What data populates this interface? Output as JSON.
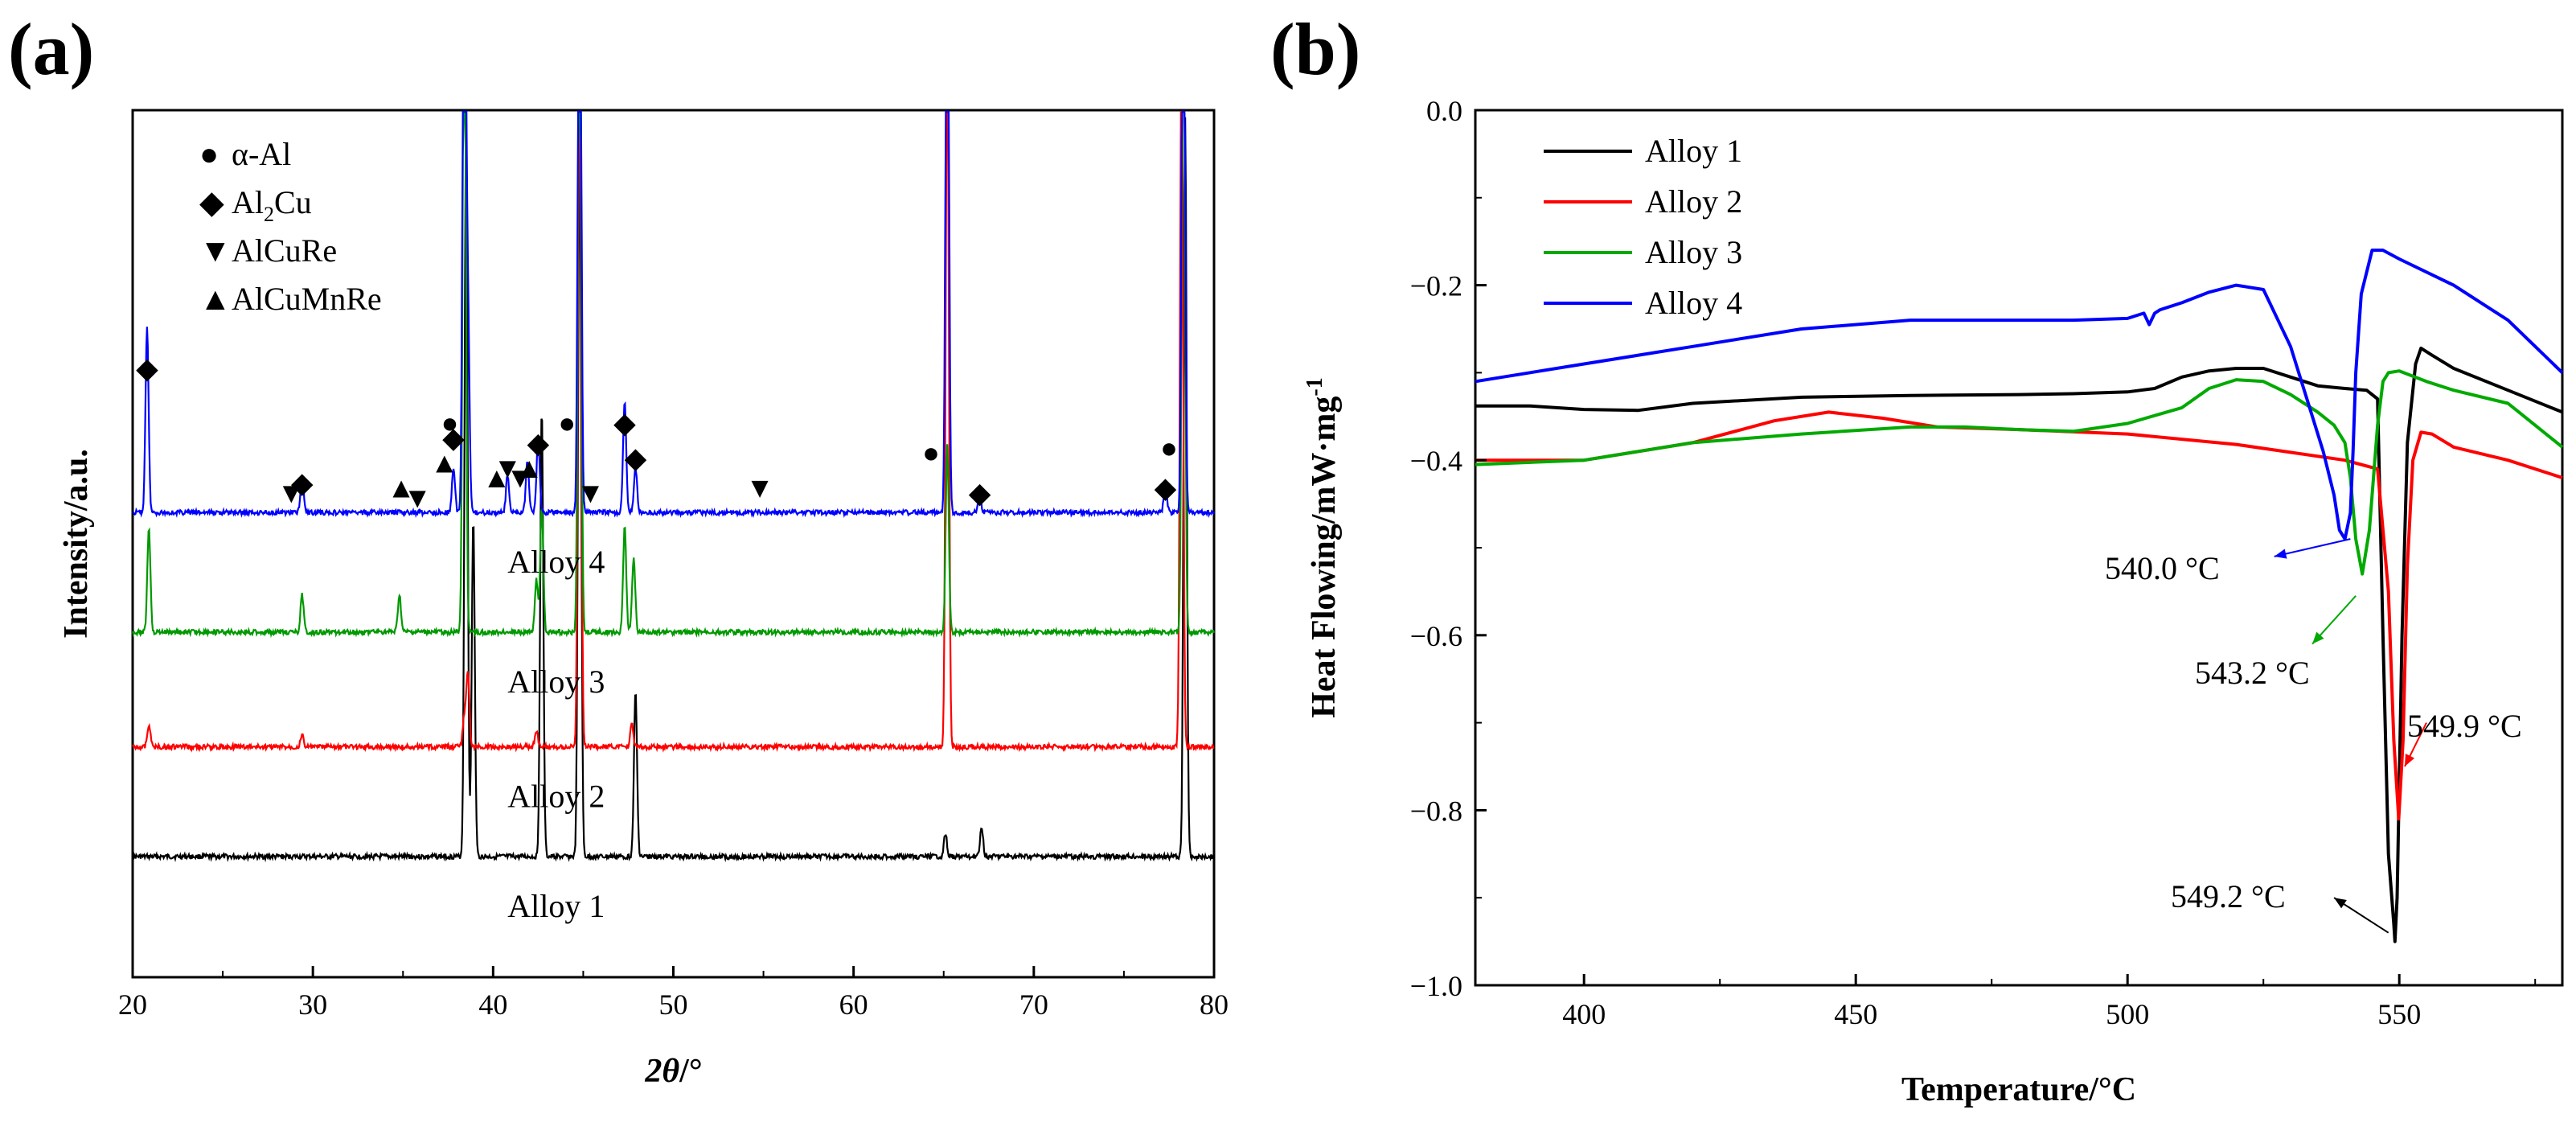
{
  "chart_data": [
    {
      "panel_label": "(a)",
      "type": "line",
      "title": "",
      "xlabel_italic": "2θ",
      "xlabel_unit": "/°",
      "ylabel": "Intensity/a.u.",
      "xlim": [
        20,
        80
      ],
      "xticks": [
        20,
        30,
        40,
        50,
        60,
        70,
        80
      ],
      "xtick_labels": [
        "20",
        "30",
        "40",
        "50",
        "60",
        "70",
        "80"
      ],
      "series": [
        {
          "name": "Alloy 1",
          "color": "#000000",
          "baseline": 0.0,
          "peaks": [
            [
              38.5,
              0.98
            ],
            [
              38.9,
              0.45
            ],
            [
              42.7,
              0.6
            ],
            [
              44.8,
              0.98
            ],
            [
              47.9,
              0.22
            ],
            [
              65.1,
              0.03
            ],
            [
              67.1,
              0.04
            ],
            [
              78.4,
              0.99
            ]
          ]
        },
        {
          "name": "Alloy 2",
          "color": "#ff0000",
          "baseline": 0.22,
          "peaks": [
            [
              20.9,
              0.03
            ],
            [
              29.4,
              0.015
            ],
            [
              38.4,
              0.04
            ],
            [
              38.6,
              0.1
            ],
            [
              42.4,
              0.02
            ],
            [
              44.8,
              0.99
            ],
            [
              47.7,
              0.03
            ],
            [
              65.2,
              0.99
            ],
            [
              78.2,
              0.99
            ]
          ]
        },
        {
          "name": "Alloy 3",
          "color": "#009900",
          "baseline": 0.45,
          "peaks": [
            [
              20.9,
              0.14
            ],
            [
              29.4,
              0.05
            ],
            [
              34.8,
              0.05
            ],
            [
              38.4,
              0.99
            ],
            [
              42.4,
              0.07
            ],
            [
              42.7,
              0.17
            ],
            [
              44.8,
              0.99
            ],
            [
              47.3,
              0.14
            ],
            [
              47.8,
              0.1
            ],
            [
              65.2,
              0.25
            ],
            [
              78.3,
              0.99
            ]
          ]
        },
        {
          "name": "Alloy 4",
          "color": "#0000ff",
          "baseline": 0.69,
          "peaks": [
            [
              20.8,
              0.25
            ],
            [
              29.4,
              0.05
            ],
            [
              37.8,
              0.06
            ],
            [
              38.4,
              0.99
            ],
            [
              38.6,
              0.28
            ],
            [
              40.8,
              0.05
            ],
            [
              41.9,
              0.07
            ],
            [
              42.5,
              0.1
            ],
            [
              44.8,
              0.99
            ],
            [
              47.3,
              0.15
            ],
            [
              47.9,
              0.06
            ],
            [
              65.2,
              0.99
            ],
            [
              67.0,
              0.02
            ],
            [
              77.3,
              0.04
            ],
            [
              78.3,
              0.99
            ]
          ]
        }
      ],
      "alloy_labels": [
        "Alloy 4",
        "Alloy 3",
        "Alloy 2",
        "Alloy 1"
      ],
      "legend": [
        {
          "symbol": "●",
          "label": "α-Al"
        },
        {
          "symbol": "◆",
          "label_main": "Al",
          "label_sub": "2",
          "label_tail": "Cu"
        },
        {
          "symbol": "▼",
          "label": "AlCuRe"
        },
        {
          "symbol": "▲",
          "label": "AlCuMnRe"
        }
      ],
      "phase_markers": [
        {
          "symbol": "●",
          "x": 37.6,
          "level": 0.85
        },
        {
          "symbol": "●",
          "x": 44.1,
          "level": 0.85
        },
        {
          "symbol": "●",
          "x": 64.3,
          "level": 0.79
        },
        {
          "symbol": "●",
          "x": 77.5,
          "level": 0.8
        },
        {
          "symbol": "◆",
          "x": 20.8,
          "level": 0.96
        },
        {
          "symbol": "◆",
          "x": 29.4,
          "level": 0.73
        },
        {
          "symbol": "◆",
          "x": 37.8,
          "level": 0.82
        },
        {
          "symbol": "◆",
          "x": 42.5,
          "level": 0.81
        },
        {
          "symbol": "◆",
          "x": 47.3,
          "level": 0.85
        },
        {
          "symbol": "◆",
          "x": 47.9,
          "level": 0.78
        },
        {
          "symbol": "◆",
          "x": 67.0,
          "level": 0.71
        },
        {
          "symbol": "◆",
          "x": 77.3,
          "level": 0.72
        },
        {
          "symbol": "▼",
          "x": 28.8,
          "level": 0.71
        },
        {
          "symbol": "▼",
          "x": 35.8,
          "level": 0.7
        },
        {
          "symbol": "▼",
          "x": 40.8,
          "level": 0.76
        },
        {
          "symbol": "▼",
          "x": 41.5,
          "level": 0.74
        },
        {
          "symbol": "▼",
          "x": 45.4,
          "level": 0.71
        },
        {
          "symbol": "▼",
          "x": 54.8,
          "level": 0.72
        },
        {
          "symbol": "▲",
          "x": 34.9,
          "level": 0.72
        },
        {
          "symbol": "▲",
          "x": 37.3,
          "level": 0.77
        },
        {
          "symbol": "▲",
          "x": 40.2,
          "level": 0.74
        },
        {
          "symbol": "▲",
          "x": 42.0,
          "level": 0.76
        }
      ]
    },
    {
      "panel_label": "(b)",
      "type": "line",
      "title": "",
      "xlabel": "Temperature/°C",
      "ylabel_main": "Heat Flowing/mW·mg",
      "ylabel_sup": "-1",
      "xlim": [
        380,
        580
      ],
      "ylim": [
        -1.0,
        0.0
      ],
      "xticks": [
        400,
        450,
        500,
        550
      ],
      "xtick_labels": [
        "400",
        "450",
        "500",
        "550"
      ],
      "yticks": [
        0.0,
        -0.2,
        -0.4,
        -0.6,
        -0.8,
        -1.0
      ],
      "ytick_labels": [
        "0.0",
        "−0.2",
        "−0.4",
        "−0.6",
        "−0.8",
        "−1.0"
      ],
      "legend": [
        "Alloy 1",
        "Alloy 2",
        "Alloy 3",
        "Alloy 4"
      ],
      "series": [
        {
          "name": "Alloy 1",
          "color": "#000000",
          "x": [
            380,
            390,
            400,
            410,
            420,
            440,
            460,
            480,
            490,
            500,
            505,
            510,
            515,
            520,
            525,
            530,
            535,
            540,
            544,
            546,
            547,
            548,
            549,
            549.2,
            549.6,
            550.5,
            551.5,
            553,
            554,
            556,
            560,
            570,
            580
          ],
          "y": [
            -0.338,
            -0.338,
            -0.342,
            -0.343,
            -0.335,
            -0.328,
            -0.326,
            -0.325,
            -0.324,
            -0.322,
            -0.318,
            -0.305,
            -0.298,
            -0.295,
            -0.295,
            -0.305,
            -0.315,
            -0.318,
            -0.32,
            -0.33,
            -0.6,
            -0.85,
            -0.93,
            -0.95,
            -0.9,
            -0.6,
            -0.38,
            -0.29,
            -0.272,
            -0.28,
            -0.295,
            -0.32,
            -0.345
          ]
        },
        {
          "name": "Alloy 2",
          "color": "#ff0000",
          "x": [
            380,
            400,
            420,
            435,
            445,
            455,
            465,
            480,
            500,
            520,
            540,
            546,
            548,
            549,
            549.9,
            550.7,
            551.5,
            552.5,
            554,
            556,
            560,
            570,
            580
          ],
          "y": [
            -0.4,
            -0.4,
            -0.38,
            -0.355,
            -0.345,
            -0.352,
            -0.362,
            -0.365,
            -0.37,
            -0.382,
            -0.4,
            -0.41,
            -0.55,
            -0.72,
            -0.81,
            -0.72,
            -0.52,
            -0.4,
            -0.368,
            -0.37,
            -0.385,
            -0.4,
            -0.42
          ]
        },
        {
          "name": "Alloy 3",
          "color": "#00aa00",
          "x": [
            380,
            400,
            420,
            440,
            460,
            470,
            480,
            490,
            500,
            510,
            515,
            520,
            525,
            530,
            535,
            538,
            540,
            541,
            542,
            543.2,
            544.5,
            546,
            547,
            548,
            550,
            555,
            560,
            570,
            580
          ],
          "y": [
            -0.405,
            -0.4,
            -0.38,
            -0.37,
            -0.362,
            -0.362,
            -0.365,
            -0.367,
            -0.358,
            -0.34,
            -0.318,
            -0.308,
            -0.31,
            -0.325,
            -0.345,
            -0.36,
            -0.38,
            -0.42,
            -0.49,
            -0.53,
            -0.48,
            -0.36,
            -0.31,
            -0.3,
            -0.298,
            -0.31,
            -0.32,
            -0.335,
            -0.385
          ]
        },
        {
          "name": "Alloy 4",
          "color": "#0000ff",
          "x": [
            380,
            400,
            420,
            440,
            460,
            470,
            480,
            490,
            500,
            503,
            504,
            505,
            506,
            510,
            515,
            520,
            525,
            530,
            533,
            536,
            538,
            539,
            540,
            541,
            541.5,
            542,
            543,
            545,
            547,
            550,
            560,
            570,
            580
          ],
          "y": [
            -0.31,
            -0.29,
            -0.27,
            -0.25,
            -0.24,
            -0.24,
            -0.24,
            -0.24,
            -0.238,
            -0.232,
            -0.245,
            -0.232,
            -0.228,
            -0.22,
            -0.208,
            -0.2,
            -0.205,
            -0.27,
            -0.33,
            -0.39,
            -0.44,
            -0.48,
            -0.49,
            -0.46,
            -0.39,
            -0.3,
            -0.21,
            -0.16,
            -0.16,
            -0.17,
            -0.2,
            -0.24,
            -0.3
          ]
        }
      ],
      "annotations": [
        {
          "text": "540.0 °C",
          "color": "#0000ff",
          "from": [
            527,
            -0.51
          ],
          "to": [
            541,
            -0.49
          ]
        },
        {
          "text": "543.2 °C",
          "color": "#00aa00",
          "from": [
            534,
            -0.61
          ],
          "to": [
            542,
            -0.555
          ]
        },
        {
          "text": "549.9 °C",
          "color": "#ff0000",
          "from": [
            551,
            -0.75
          ],
          "to": [
            555,
            -0.7
          ]
        },
        {
          "text": "549.2 °C",
          "color": "#000000",
          "from": [
            538,
            -0.9
          ],
          "to": [
            548,
            -0.94
          ]
        }
      ]
    }
  ]
}
